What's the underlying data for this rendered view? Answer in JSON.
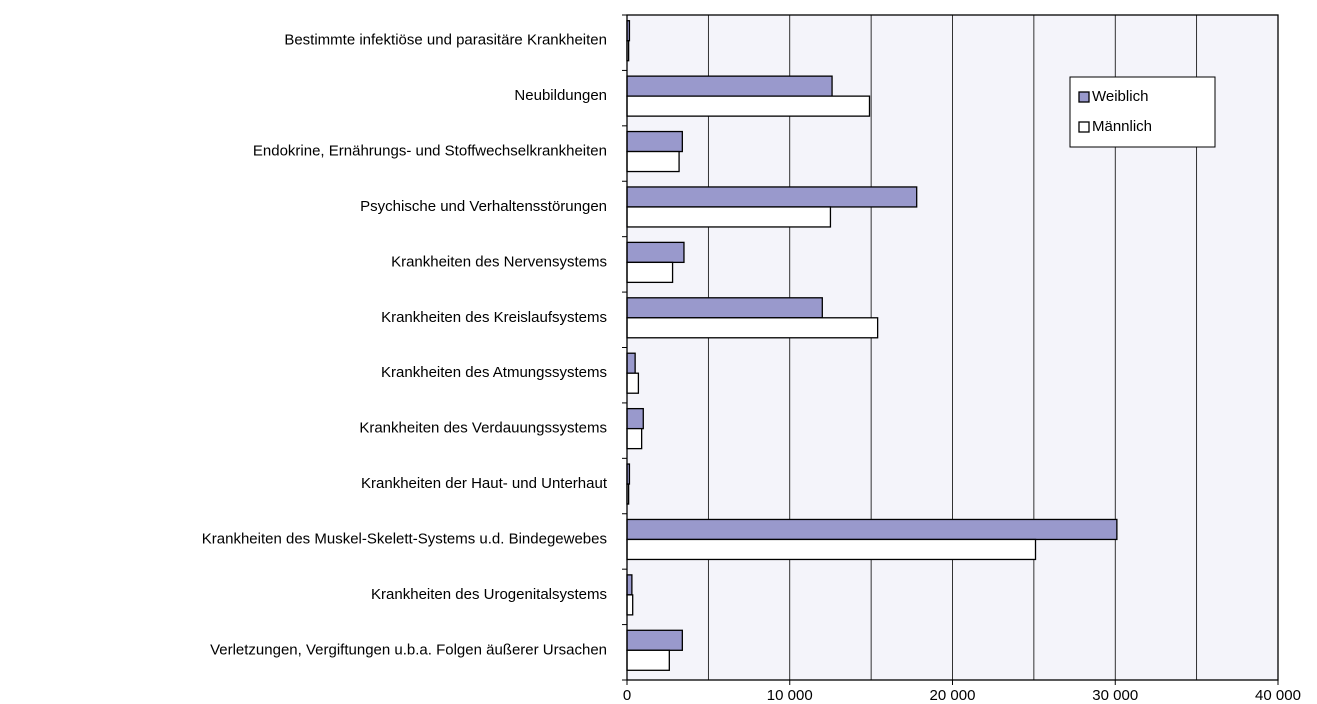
{
  "chart_data": {
    "type": "hbar",
    "categories": [
      "Bestimmte infektiöse und parasitäre Krankheiten",
      "Neubildungen",
      "Endokrine, Ernährungs- und Stoffwechselkrankheiten",
      "Psychische und Verhaltensstörungen",
      "Krankheiten des Nervensystems",
      "Krankheiten des Kreislaufsystems",
      "Krankheiten des Atmungssystems",
      "Krankheiten des Verdauungssystems",
      "Krankheiten der Haut- und Unterhaut",
      "Krankheiten des Muskel-Skelett-Systems u.d. Bindegewebes",
      "Krankheiten des Urogenitalsystems",
      "Verletzungen, Vergiftungen u.b.a. Folgen äußerer Ursachen"
    ],
    "series": [
      {
        "name": "Weiblich",
        "color": "#9999cc",
        "values": [
          150,
          12600,
          3400,
          17800,
          3500,
          12000,
          500,
          1000,
          150,
          30100,
          300,
          3400
        ]
      },
      {
        "name": "Männlich",
        "color": "#ffffff",
        "values": [
          100,
          14900,
          3200,
          12500,
          2800,
          15400,
          700,
          900,
          100,
          25100,
          350,
          2600
        ]
      }
    ],
    "xlim": [
      0,
      40000
    ],
    "xticks": [
      0,
      {
        "value": 10000,
        "label": "10 000"
      },
      {
        "value": 20000,
        "label": "20 000"
      },
      {
        "value": 30000,
        "label": "30 000"
      },
      {
        "value": 40000,
        "label": "40 000"
      }
    ],
    "minor_xticks": [
      5000,
      15000,
      25000,
      35000
    ],
    "grid": true,
    "legend": "upper right"
  }
}
